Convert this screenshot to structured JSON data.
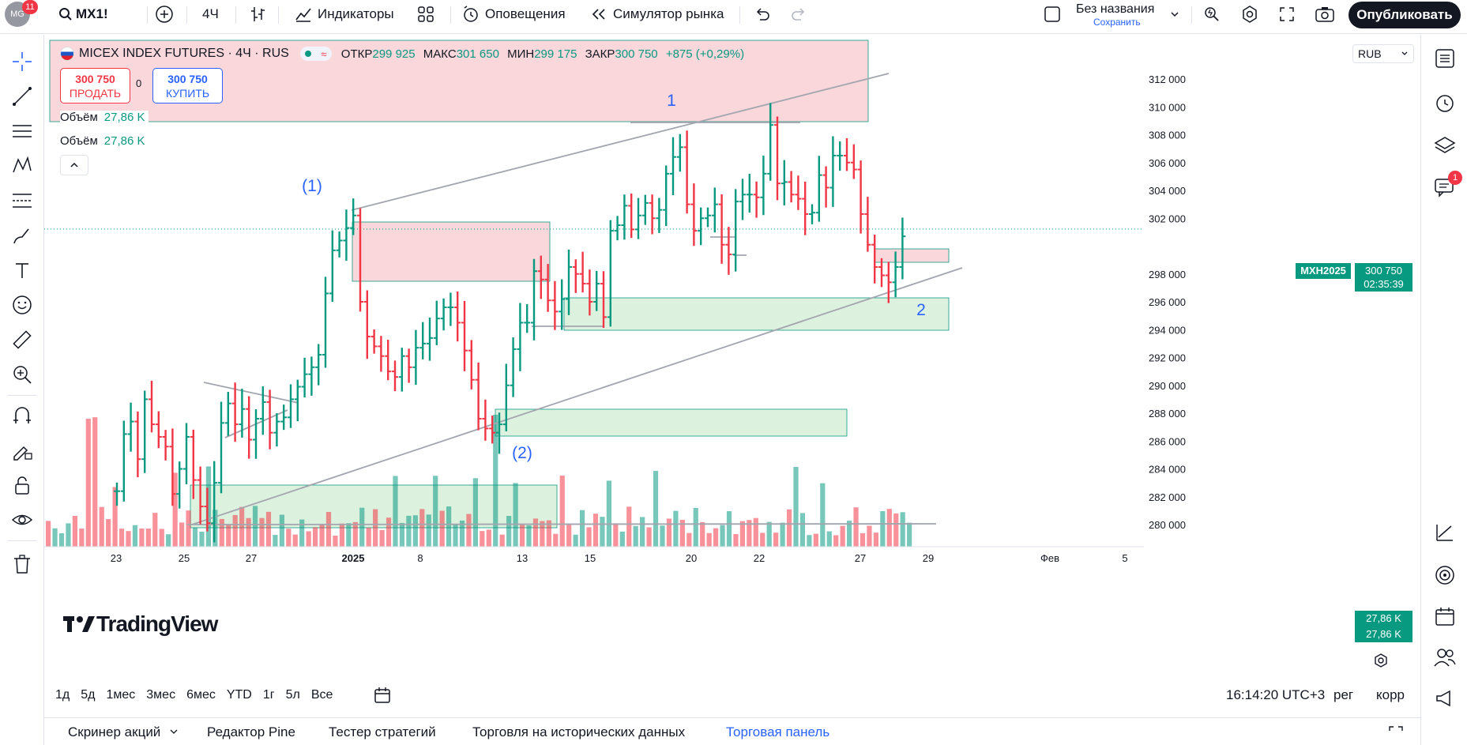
{
  "topbar": {
    "avatar_text": "MG",
    "notif_count": "11",
    "symbol": "MX1!",
    "interval": "4Ч",
    "indicators": "Индикаторы",
    "alerts": "Оповещения",
    "replay": "Симулятор рынка",
    "layout_name": "Без названия",
    "save": "Сохранить",
    "publish": "Опубликовать"
  },
  "legend": {
    "title": "MICEX INDEX FUTURES · 4Ч · RUS",
    "open_label": "ОТКР",
    "open": "299 925",
    "high_label": "МАКС",
    "high": "301 650",
    "low_label": "МИН",
    "low": "299 175",
    "close_label": "ЗАКР",
    "close": "300 750",
    "change": "+875 (+0,29%)"
  },
  "trade": {
    "sell_price": "300 750",
    "sell_label": "ПРОДАТЬ",
    "spread": "0",
    "buy_price": "300 750",
    "buy_label": "КУПИТЬ"
  },
  "volume": [
    {
      "label": "Объём",
      "value": "27,86 K"
    },
    {
      "label": "Объём",
      "value": "27,86 K"
    }
  ],
  "currency": "RUB",
  "price_axis": [
    "312 000",
    "310 000",
    "308 000",
    "306 000",
    "304 000",
    "302 000",
    "298 000",
    "296 000",
    "294 000",
    "292 000",
    "290 000",
    "288 000",
    "286 000",
    "284 000",
    "282 000",
    "280 000"
  ],
  "last_price": {
    "symbol": "MXH2025",
    "price": "300 750",
    "countdown": "02:35:39"
  },
  "volume_axis": [
    "27,86 K",
    "27,86 K"
  ],
  "time_axis": [
    "23",
    "25",
    "27",
    "2025",
    "8",
    "13",
    "15",
    "20",
    "22",
    "27",
    "29",
    "Фев",
    "5"
  ],
  "annotations": [
    "1",
    "(1)",
    "(2)",
    "2"
  ],
  "watermark": "TradingView",
  "bottom": {
    "ranges": [
      "1д",
      "5д",
      "1мес",
      "3мес",
      "6мес",
      "YTD",
      "1г",
      "5л",
      "Все"
    ],
    "clock": "16:14:20 UTC+3",
    "session": "рег",
    "adjust": "корр"
  },
  "panel_tabs": [
    "Скринер акций",
    "Редактор Pine",
    "Тестер стратегий",
    "Торговля на исторических данных",
    "Торговая панель"
  ],
  "right_badge": "1",
  "colors": {
    "up": "#089981",
    "down": "#f23645",
    "blue": "#2962ff",
    "accent_badge": "#089981"
  },
  "chart_data": {
    "type": "ohlc",
    "symbol": "MX1!",
    "interval": "4Ч",
    "ylim": [
      279000,
      313000
    ],
    "volume_label": "Объём",
    "last_close": 300750
  }
}
